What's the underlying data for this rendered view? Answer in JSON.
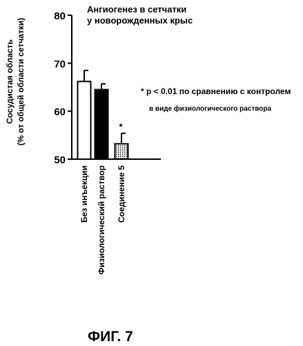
{
  "chart_data": {
    "type": "bar",
    "title": [
      "Ангиогенез в сетчатки",
      "у новорожденных крыс"
    ],
    "ylabel": [
      "Сосудистая область",
      "(% от общей области сетчатки)"
    ],
    "ylim": [
      50,
      80
    ],
    "yticks": [
      50,
      60,
      70,
      80
    ],
    "categories": [
      "Без инъекции",
      "Физиологический раствор",
      "Соединение 5"
    ],
    "values": [
      66.2,
      64.5,
      53.2
    ],
    "errors": [
      2.3,
      1.2,
      2.2
    ],
    "fills": [
      "white",
      "black",
      "dotted"
    ],
    "significance_marks": [
      "",
      "",
      "*"
    ],
    "annotation": [
      "* p < 0.01 по сравнению с контролем",
      "в виде физиологического раствора"
    ]
  },
  "figure_label": "ФИГ. 7"
}
